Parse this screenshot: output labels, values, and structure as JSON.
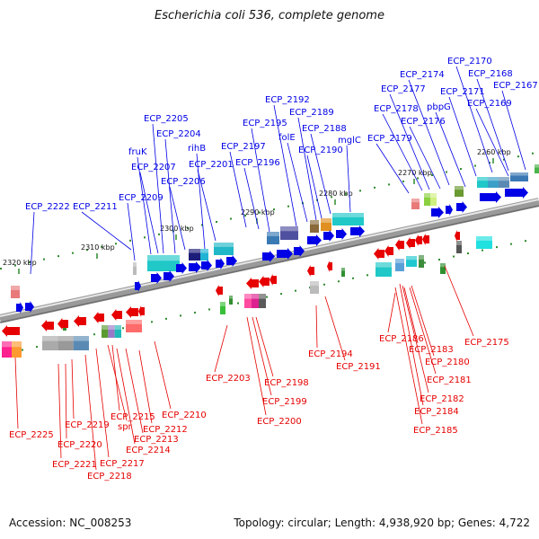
{
  "title": "Escherichia coli 536, complete genome",
  "footer": {
    "accession": "Accession: NC_008253",
    "summary": "Topology: circular; Length: 4,938,920 bp; Genes: 4,722"
  },
  "colors": {
    "forward": "#0000e6",
    "reverse": "#e60000",
    "backbone": "#8c8c8c"
  },
  "kbp_labels": [
    "2260 kbp",
    "2270 kbp",
    "2280 kbp",
    "2290 kbp",
    "2300 kbp",
    "2310 kbp",
    "2320 kbp"
  ],
  "forward_genes": [
    "ECP_2170",
    "ECP_2168",
    "ECP_2174",
    "ECP_2167",
    "ECP_2177",
    "ECP_2171",
    "ECP_2192",
    "ECP_2178",
    "pbpG",
    "ECP_2169",
    "ECP_2189",
    "ECP_2176",
    "ECP_2205",
    "ECP_2195",
    "ECP_2188",
    "ECP_2204",
    "folE",
    "mglC",
    "ECP_2179",
    "rihB",
    "ECP_2197",
    "ECP_2190",
    "fruK",
    "ECP_2201",
    "ECP_2196",
    "ECP_2207",
    "ECP_2206",
    "ECP_2209",
    "ECP_2222",
    "ECP_2211"
  ],
  "reverse_genes": [
    "ECP_2186",
    "ECP_2175",
    "ECP_2183",
    "ECP_2194",
    "ECP_2180",
    "ECP_2191",
    "ECP_2181",
    "ECP_2203",
    "ECP_2198",
    "ECP_2182",
    "ECP_2199",
    "ECP_2210",
    "ECP_2184",
    "ECP_2215",
    "ECP_2200",
    "ECP_2219",
    "spr",
    "ECP_2212",
    "ECP_2185",
    "ECP_2225",
    "ECP_2213",
    "ECP_2220",
    "ECP_2214",
    "ECP_2221",
    "ECP_2217",
    "ECP_2218"
  ]
}
